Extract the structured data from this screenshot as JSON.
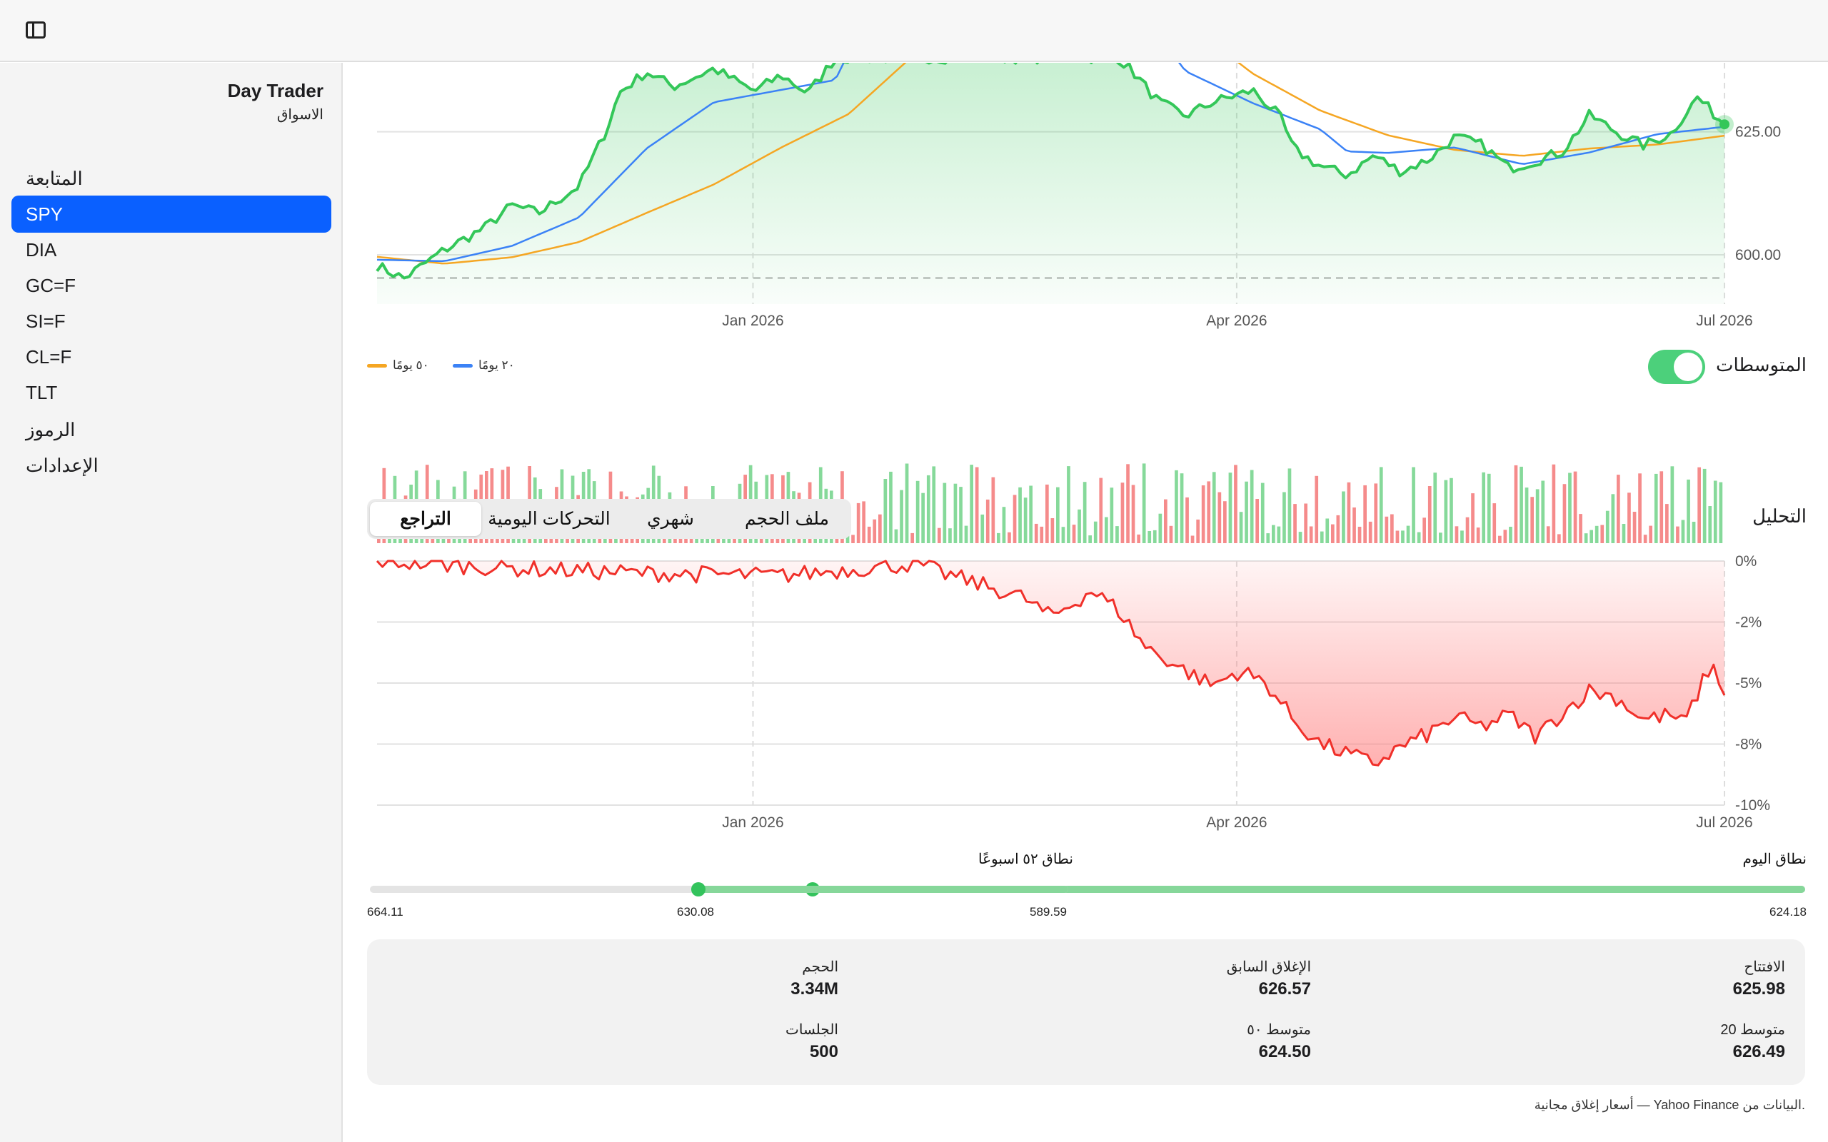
{
  "app": {
    "title": "Day Trader",
    "subtitle": "الاسواق",
    "icons": {
      "sidebar_toggle": "sidebar-toggle-icon"
    }
  },
  "sidebar": {
    "items": [
      {
        "label": "المتابعة",
        "active": false
      },
      {
        "label": "SPY",
        "active": true
      },
      {
        "label": "DIA",
        "active": false
      },
      {
        "label": "GC=F",
        "active": false
      },
      {
        "label": "SI=F",
        "active": false
      },
      {
        "label": "CL=F",
        "active": false
      },
      {
        "label": "TLT",
        "active": false
      },
      {
        "label": "الرموز",
        "active": false
      },
      {
        "label": "الإعدادات",
        "active": false
      }
    ]
  },
  "controls": {
    "moving_averages_label": "المتوسطات",
    "moving_averages_on": true,
    "legend_ma50": "٥٠ يومًا",
    "legend_ma20": "٢٠ يومًا",
    "analysis_label": "التحليل",
    "tabs": [
      "ملف الحجم",
      "شهري",
      "التحركات اليومية",
      "التراجع"
    ],
    "active_tab": 3
  },
  "colors": {
    "price_line": "#34c759",
    "price_fill": "#34c759",
    "ma20": "#3b82f6",
    "ma50": "#f5a623",
    "volume_up": "#86d99a",
    "volume_down": "#f58b8b",
    "drawdown_line": "#f0302a",
    "drawdown_fill": "#ff7d7d",
    "accent": "#0a60ff",
    "toggle_on": "#4cd07b"
  },
  "chart_data": [
    {
      "type": "line",
      "id": "price",
      "x_ticks": [
        "Jan 2026",
        "Apr 2026",
        "Jul 2026"
      ],
      "y_ticks": [
        "625.00",
        "600.00"
      ],
      "ylim_visible": [
        590,
        639
      ],
      "reference_line": 595.3,
      "last_value": 626.5,
      "series": [
        {
          "name": "SPY",
          "anchors": [
            [
              0,
              597.8
            ],
            [
              0.02,
              595.2
            ],
            [
              0.05,
              601.0
            ],
            [
              0.08,
              605.5
            ],
            [
              0.1,
              610.0
            ],
            [
              0.12,
              608.5
            ],
            [
              0.15,
              614.0
            ],
            [
              0.17,
              625.2
            ],
            [
              0.18,
              633.0
            ],
            [
              0.2,
              637.2
            ],
            [
              0.22,
              634.2
            ],
            [
              0.25,
              637.8
            ],
            [
              0.28,
              633.2
            ],
            [
              0.3,
              636.5
            ],
            [
              0.32,
              632.8
            ],
            [
              0.34,
              640.0
            ],
            [
              0.55,
              640.0
            ],
            [
              0.56,
              637.5
            ],
            [
              0.58,
              631.0
            ],
            [
              0.6,
              628.2
            ],
            [
              0.62,
              631.0
            ],
            [
              0.65,
              633.4
            ],
            [
              0.67,
              628.1
            ],
            [
              0.68,
              621.5
            ],
            [
              0.7,
              618.0
            ],
            [
              0.72,
              616.2
            ],
            [
              0.74,
              620.2
            ],
            [
              0.76,
              616.9
            ],
            [
              0.78,
              619.3
            ],
            [
              0.8,
              623.9
            ],
            [
              0.82,
              622.3
            ],
            [
              0.84,
              617.6
            ],
            [
              0.86,
              619.1
            ],
            [
              0.88,
              621.0
            ],
            [
              0.9,
              628.4
            ],
            [
              0.92,
              624.9
            ],
            [
              0.94,
              622.2
            ],
            [
              0.96,
              624.6
            ],
            [
              0.98,
              632.0
            ],
            [
              1.0,
              626.5
            ]
          ]
        },
        {
          "name": "٢٠ يومًا",
          "anchors": [
            [
              0,
              599.0
            ],
            [
              0.05,
              598.7
            ],
            [
              0.1,
              601.8
            ],
            [
              0.15,
              607.6
            ],
            [
              0.2,
              621.6
            ],
            [
              0.25,
              631.0
            ],
            [
              0.3,
              633.5
            ],
            [
              0.34,
              635.5
            ],
            [
              0.35,
              641.0
            ],
            [
              0.59,
              641.0
            ],
            [
              0.6,
              637.3
            ],
            [
              0.65,
              630.8
            ],
            [
              0.7,
              625.5
            ],
            [
              0.72,
              621.0
            ],
            [
              0.75,
              620.7
            ],
            [
              0.8,
              621.8
            ],
            [
              0.85,
              618.4
            ],
            [
              0.9,
              620.8
            ],
            [
              0.95,
              624.5
            ],
            [
              1.0,
              626.0
            ]
          ]
        },
        {
          "name": "٥٠ يومًا",
          "anchors": [
            [
              0,
              599.6
            ],
            [
              0.05,
              598.2
            ],
            [
              0.1,
              599.5
            ],
            [
              0.15,
              602.6
            ],
            [
              0.2,
              608.5
            ],
            [
              0.25,
              614.3
            ],
            [
              0.3,
              621.8
            ],
            [
              0.35,
              628.6
            ],
            [
              0.4,
              641.0
            ],
            [
              0.63,
              641.0
            ],
            [
              0.65,
              636.8
            ],
            [
              0.7,
              629.3
            ],
            [
              0.75,
              624.3
            ],
            [
              0.8,
              621.3
            ],
            [
              0.85,
              620.1
            ],
            [
              0.9,
              621.6
            ],
            [
              0.95,
              622.4
            ],
            [
              1.0,
              624.2
            ]
          ]
        }
      ]
    },
    {
      "type": "bar",
      "id": "volume",
      "bar_count": 250,
      "up_color": "#86d99a",
      "down_color": "#f58b8b"
    },
    {
      "type": "area",
      "id": "drawdown",
      "x_ticks": [
        "Jan 2026",
        "Apr 2026",
        "Jul 2026"
      ],
      "y_ticks": [
        "0%",
        "-2%",
        "-5%",
        "-8%",
        "-10%"
      ],
      "ylim": [
        -10,
        0
      ],
      "series": [
        {
          "name": "drawdown",
          "anchors": [
            [
              0,
              0
            ],
            [
              0.1,
              -0.3
            ],
            [
              0.2,
              -0.5
            ],
            [
              0.3,
              -0.6
            ],
            [
              0.38,
              -0.2
            ],
            [
              0.4,
              -0.1
            ],
            [
              0.42,
              -0.5
            ],
            [
              0.45,
              -1.0
            ],
            [
              0.48,
              -1.5
            ],
            [
              0.5,
              -2.3
            ],
            [
              0.52,
              -1.6
            ],
            [
              0.53,
              -1.2
            ],
            [
              0.55,
              -2.0
            ],
            [
              0.57,
              -3.5
            ],
            [
              0.6,
              -4.5
            ],
            [
              0.62,
              -5.1
            ],
            [
              0.64,
              -4.5
            ],
            [
              0.66,
              -5.0
            ],
            [
              0.68,
              -6.5
            ],
            [
              0.7,
              -7.5
            ],
            [
              0.72,
              -7.9
            ],
            [
              0.74,
              -8.3
            ],
            [
              0.76,
              -7.6
            ],
            [
              0.78,
              -7.1
            ],
            [
              0.8,
              -6.4
            ],
            [
              0.82,
              -6.8
            ],
            [
              0.84,
              -6.3
            ],
            [
              0.86,
              -7.2
            ],
            [
              0.88,
              -6.2
            ],
            [
              0.9,
              -5.3
            ],
            [
              0.92,
              -5.6
            ],
            [
              0.94,
              -6.5
            ],
            [
              0.96,
              -6.3
            ],
            [
              0.97,
              -6.7
            ],
            [
              0.99,
              -4.2
            ],
            [
              1.0,
              -5.5
            ]
          ]
        }
      ]
    }
  ],
  "ranges": {
    "day": {
      "label": "نطاق اليوم",
      "low": "624.18",
      "high": "630.08",
      "position": 0.12
    },
    "week52": {
      "label": "نطاق ٥٢ اسبوعًا",
      "low": "589.59",
      "high": "664.11",
      "position": 0.47
    }
  },
  "stats": {
    "open_label": "الافتتاح",
    "open_value": "625.98",
    "prev_close_label": "الإغلاق السابق",
    "prev_close_value": "626.57",
    "volume_label": "الحجم",
    "volume_value": "3.34M",
    "ma20_label": "متوسط 20",
    "ma20_value": "626.49",
    "ma50_label": "متوسط ٥٠",
    "ma50_value": "624.50",
    "sessions_label": "الجلسات",
    "sessions_value": "500"
  },
  "footer_note": "أسعار إغلاق مجانية — Yahoo Finance البيانات من."
}
